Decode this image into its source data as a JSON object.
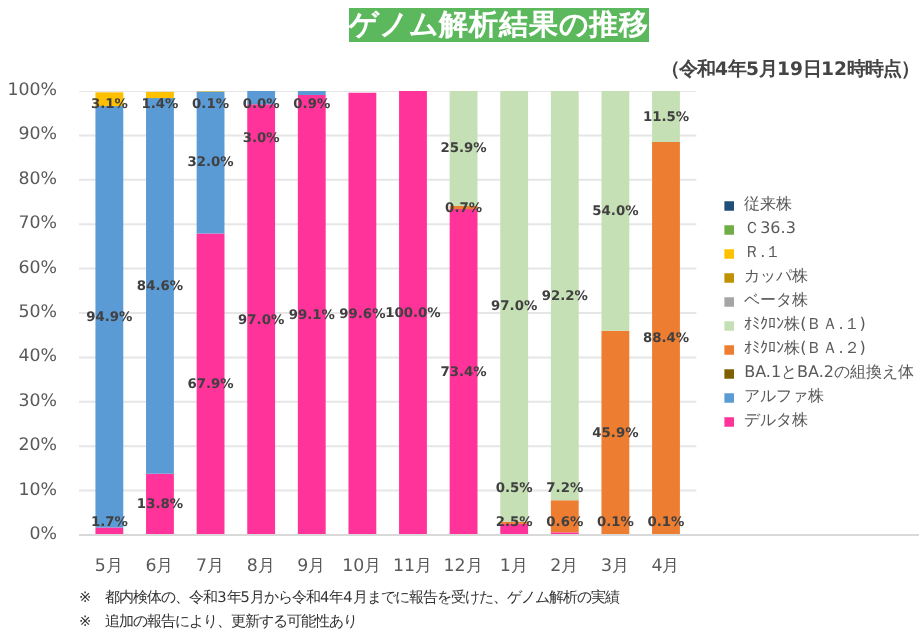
{
  "chart_data": {
    "type": "bar",
    "stacked": true,
    "title": "ゲノム解析結果の推移",
    "subtitle": "（令和4年5月19日12時時点）",
    "categories": [
      "5月",
      "6月",
      "7月",
      "8月",
      "9月",
      "10月",
      "11月",
      "12月",
      "1月",
      "2月",
      "3月",
      "4月"
    ],
    "series": [
      {
        "name": "デルタ株",
        "color": "#ff3399",
        "values": [
          1.7,
          13.8,
          67.9,
          97.0,
          99.1,
          99.6,
          100.0,
          73.4,
          2.5,
          0.6,
          null,
          null
        ],
        "value_labels": [
          "1.7%",
          "13.8%",
          "67.9%",
          "97.0%",
          "99.1%",
          "99.6%",
          "100.0%",
          "73.4%",
          "2.5%",
          "0.6%",
          null,
          null
        ]
      },
      {
        "name": "アルファ株",
        "color": "#5b9bd5",
        "values": [
          94.9,
          84.6,
          32.0,
          3.0,
          0.9,
          null,
          null,
          null,
          null,
          null,
          null,
          null
        ],
        "value_labels": [
          "94.9%",
          "84.6%",
          "32.0%",
          "3.0%",
          "0.9%",
          null,
          null,
          null,
          null,
          null,
          null,
          null
        ]
      },
      {
        "name": "BA.1とBA.2の組換え体",
        "color": "#7f6000",
        "values": [
          null,
          null,
          null,
          null,
          null,
          null,
          null,
          null,
          null,
          null,
          0.1,
          0.1
        ],
        "value_labels": [
          null,
          null,
          null,
          null,
          null,
          null,
          null,
          null,
          null,
          null,
          "0.1%",
          "0.1%"
        ]
      },
      {
        "name": "ｵﾐｸﾛﾝ株(ＢＡ.２)",
        "color": "#ed7d31",
        "values": [
          null,
          null,
          null,
          null,
          null,
          null,
          null,
          0.7,
          0.5,
          7.2,
          45.9,
          88.4
        ],
        "value_labels": [
          null,
          null,
          null,
          null,
          null,
          null,
          null,
          "0.7%",
          "0.5%",
          "7.2%",
          "45.9%",
          "88.4%"
        ]
      },
      {
        "name": "ｵﾐｸﾛﾝ株(ＢＡ.１)",
        "color": "#c5e0b4",
        "values": [
          null,
          null,
          null,
          null,
          null,
          null,
          null,
          25.9,
          97.0,
          92.2,
          54.0,
          11.5
        ],
        "value_labels": [
          null,
          null,
          null,
          null,
          null,
          null,
          null,
          "25.9%",
          "97.0%",
          "92.2%",
          "54.0%",
          "11.5%"
        ]
      },
      {
        "name": "ベータ株",
        "color": "#a5a5a5",
        "values": [
          null,
          null,
          null,
          null,
          null,
          null,
          null,
          null,
          null,
          null,
          null,
          null
        ]
      },
      {
        "name": "カッパ株",
        "color": "#bf9000",
        "values": [
          null,
          null,
          null,
          null,
          null,
          null,
          null,
          null,
          null,
          null,
          null,
          null
        ]
      },
      {
        "name": "Ｒ.１",
        "color": "#ffc000",
        "values": [
          3.1,
          1.4,
          0.1,
          0.0,
          null,
          null,
          null,
          null,
          null,
          null,
          null,
          null
        ],
        "value_labels": [
          "3.1%",
          "1.4%",
          "0.1%",
          "0.0%",
          null,
          null,
          null,
          null,
          null,
          null,
          null,
          null
        ]
      },
      {
        "name": "Ｃ36.3",
        "color": "#70ad47",
        "values": [
          null,
          null,
          null,
          null,
          null,
          null,
          null,
          null,
          null,
          null,
          null,
          null
        ]
      },
      {
        "name": "従来株",
        "color": "#1f4e79",
        "values": [
          null,
          null,
          null,
          null,
          null,
          null,
          null,
          null,
          null,
          null,
          null,
          null
        ]
      }
    ],
    "ylim": [
      0,
      100
    ],
    "yticks": [
      {
        "value": 0,
        "label": "0%"
      },
      {
        "value": 10,
        "label": "10%"
      },
      {
        "value": 20,
        "label": "20%"
      },
      {
        "value": 30,
        "label": "30%"
      },
      {
        "value": 40,
        "label": "40%"
      },
      {
        "value": 50,
        "label": "50%"
      },
      {
        "value": 60,
        "label": "60%"
      },
      {
        "value": 70,
        "label": "70%"
      },
      {
        "value": 80,
        "label": "80%"
      },
      {
        "value": 90,
        "label": "90%"
      },
      {
        "value": 100,
        "label": "100%"
      }
    ],
    "grid": "y",
    "legend": "right",
    "annotations": [
      "※　都内検体の、令和3年5月から令和4年4月までに報告を受けた、ゲノム解析の実績",
      "※　追加の報告により、更新する可能性あり"
    ]
  }
}
